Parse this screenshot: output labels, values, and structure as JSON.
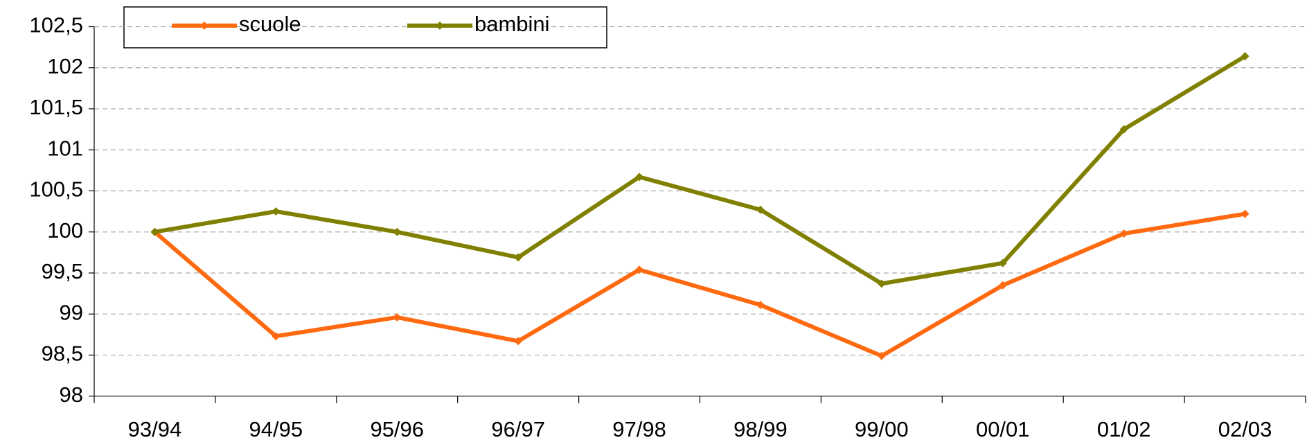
{
  "chart_data": {
    "type": "line",
    "categories": [
      "93/94",
      "94/95",
      "95/96",
      "96/97",
      "97/98",
      "98/99",
      "99/00",
      "00/01",
      "01/02",
      "02/03"
    ],
    "series": [
      {
        "name": "scuole",
        "color": "#ff6a10",
        "values": [
          100,
          98.73,
          98.96,
          98.67,
          99.54,
          99.11,
          98.49,
          99.35,
          99.98,
          100.22
        ]
      },
      {
        "name": "bambini",
        "color": "#808000",
        "values": [
          100,
          100.25,
          100,
          99.69,
          100.67,
          100.27,
          99.37,
          99.62,
          101.25,
          102.14
        ]
      }
    ],
    "ylim": [
      98,
      102.5
    ],
    "yticks": [
      98,
      {
        "value": 98.5,
        "label": "98,5"
      },
      99,
      {
        "value": 99.5,
        "label": "99,5"
      },
      100,
      {
        "value": 100.5,
        "label": "100,5"
      },
      101,
      {
        "value": 101.5,
        "label": "101,5"
      },
      102,
      {
        "value": 102.5,
        "label": "102,5"
      }
    ],
    "grid": true
  }
}
